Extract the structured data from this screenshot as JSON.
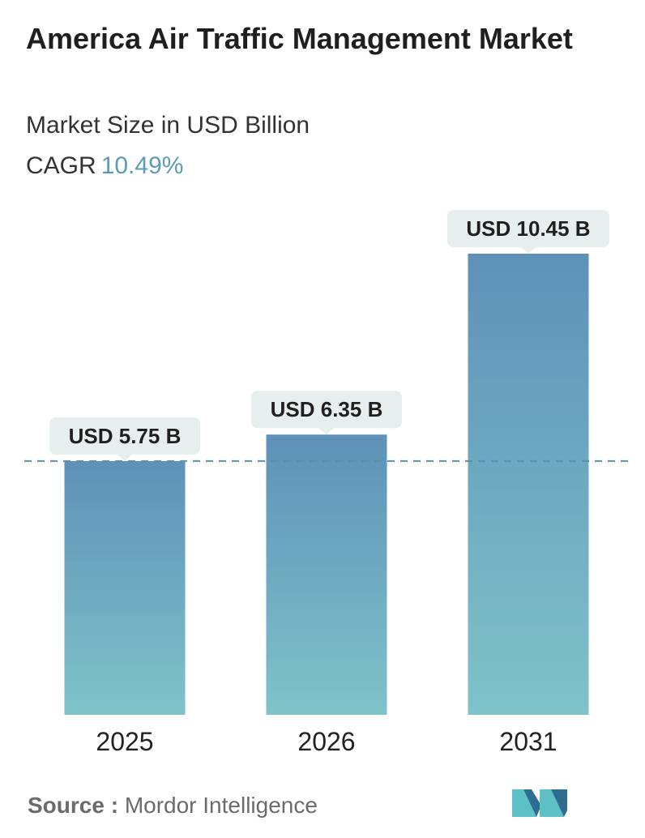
{
  "header": {
    "title": "America Air Traffic Management Market",
    "subtitle": "Market Size in USD Billion",
    "cagr_label": "CAGR",
    "cagr_value": "10.49%"
  },
  "chart_data": {
    "type": "bar",
    "categories": [
      "2025",
      "2026",
      "2031"
    ],
    "values": [
      5.75,
      6.35,
      10.45
    ],
    "value_labels": [
      "USD 5.75 B",
      "USD 6.35 B",
      "USD 10.45 B"
    ],
    "reference_line": 5.75,
    "grid": false,
    "legend": "none"
  },
  "footer": {
    "source_label": "Source :",
    "source_text": "Mordor Intelligence"
  },
  "colors": {
    "bar_top": "#5f91b8",
    "bar_bottom": "#7fc3c9",
    "label_bg": "#e6eeee",
    "dash_line": "#5b8fa8",
    "cagr_accent": "#5b9bb6",
    "logo_dark": "#2e6d8f",
    "logo_light": "#5ec0c7"
  }
}
